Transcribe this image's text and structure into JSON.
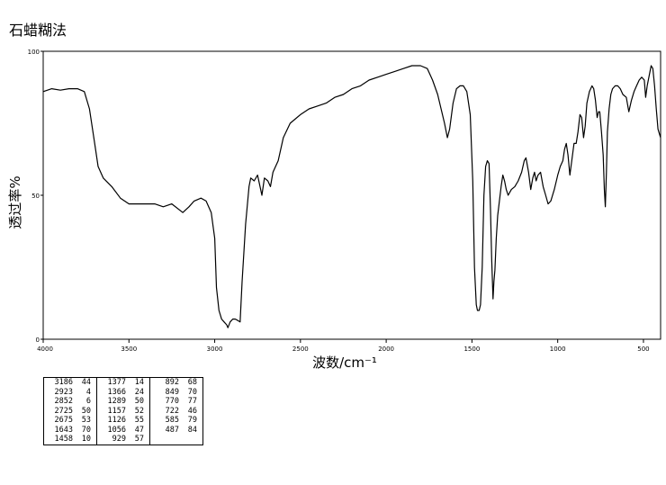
{
  "chart_data": {
    "type": "line",
    "title": "石蜡糊法",
    "xlabel": "波数/cm⁻¹",
    "ylabel": "透过率%",
    "xlim": [
      4000,
      400
    ],
    "ylim": [
      0,
      100
    ],
    "x_ticks": [
      "4000",
      "3500",
      "3000",
      "2500",
      "2000",
      "1500",
      "1000",
      "500"
    ],
    "x_tick_values": [
      4000,
      3500,
      3000,
      2500,
      2000,
      1500,
      1000,
      500
    ],
    "y_ticks": [
      "0",
      "50",
      "100"
    ],
    "y_tick_values": [
      0,
      50,
      100
    ],
    "line_color": "#000000",
    "series": [
      {
        "points": [
          [
            4000,
            86
          ],
          [
            3950,
            87
          ],
          [
            3900,
            86.5
          ],
          [
            3850,
            87
          ],
          [
            3800,
            87
          ],
          [
            3760,
            86
          ],
          [
            3730,
            80
          ],
          [
            3700,
            68
          ],
          [
            3680,
            60
          ],
          [
            3650,
            56
          ],
          [
            3600,
            53
          ],
          [
            3550,
            49
          ],
          [
            3500,
            47
          ],
          [
            3450,
            47
          ],
          [
            3400,
            47
          ],
          [
            3350,
            47
          ],
          [
            3300,
            46
          ],
          [
            3250,
            47
          ],
          [
            3186,
            44
          ],
          [
            3150,
            46
          ],
          [
            3120,
            48
          ],
          [
            3080,
            49
          ],
          [
            3050,
            48
          ],
          [
            3020,
            44
          ],
          [
            3000,
            35
          ],
          [
            2990,
            18
          ],
          [
            2975,
            10
          ],
          [
            2960,
            7
          ],
          [
            2945,
            6
          ],
          [
            2930,
            5
          ],
          [
            2923,
            4
          ],
          [
            2910,
            6
          ],
          [
            2895,
            7
          ],
          [
            2880,
            7
          ],
          [
            2865,
            6.5
          ],
          [
            2852,
            6
          ],
          [
            2840,
            20
          ],
          [
            2820,
            40
          ],
          [
            2800,
            53
          ],
          [
            2790,
            56
          ],
          [
            2770,
            55
          ],
          [
            2750,
            57
          ],
          [
            2725,
            50
          ],
          [
            2710,
            56
          ],
          [
            2690,
            55
          ],
          [
            2675,
            53
          ],
          [
            2660,
            58
          ],
          [
            2630,
            62
          ],
          [
            2600,
            70
          ],
          [
            2560,
            75
          ],
          [
            2500,
            78
          ],
          [
            2450,
            80
          ],
          [
            2400,
            81
          ],
          [
            2350,
            82
          ],
          [
            2300,
            84
          ],
          [
            2250,
            85
          ],
          [
            2200,
            87
          ],
          [
            2150,
            88
          ],
          [
            2100,
            90
          ],
          [
            2050,
            91
          ],
          [
            2000,
            92
          ],
          [
            1950,
            93
          ],
          [
            1900,
            94
          ],
          [
            1850,
            95
          ],
          [
            1800,
            95
          ],
          [
            1760,
            94
          ],
          [
            1730,
            90
          ],
          [
            1700,
            85
          ],
          [
            1680,
            80
          ],
          [
            1660,
            75
          ],
          [
            1643,
            70
          ],
          [
            1630,
            73
          ],
          [
            1610,
            82
          ],
          [
            1590,
            87
          ],
          [
            1570,
            88
          ],
          [
            1550,
            88
          ],
          [
            1530,
            86
          ],
          [
            1510,
            78
          ],
          [
            1495,
            55
          ],
          [
            1485,
            25
          ],
          [
            1475,
            12
          ],
          [
            1468,
            10
          ],
          [
            1458,
            10
          ],
          [
            1450,
            12
          ],
          [
            1440,
            25
          ],
          [
            1430,
            50
          ],
          [
            1420,
            60
          ],
          [
            1410,
            62
          ],
          [
            1400,
            61
          ],
          [
            1392,
            45
          ],
          [
            1385,
            28
          ],
          [
            1377,
            14
          ],
          [
            1372,
            20
          ],
          [
            1366,
            24
          ],
          [
            1358,
            35
          ],
          [
            1350,
            43
          ],
          [
            1340,
            48
          ],
          [
            1330,
            53
          ],
          [
            1320,
            57
          ],
          [
            1310,
            55
          ],
          [
            1300,
            52
          ],
          [
            1289,
            50
          ],
          [
            1270,
            52
          ],
          [
            1250,
            53
          ],
          [
            1230,
            55
          ],
          [
            1210,
            58
          ],
          [
            1195,
            62
          ],
          [
            1185,
            63
          ],
          [
            1170,
            58
          ],
          [
            1157,
            52
          ],
          [
            1145,
            56
          ],
          [
            1135,
            58
          ],
          [
            1126,
            55
          ],
          [
            1115,
            57
          ],
          [
            1100,
            58
          ],
          [
            1085,
            53
          ],
          [
            1070,
            50
          ],
          [
            1056,
            47
          ],
          [
            1040,
            48
          ],
          [
            1020,
            52
          ],
          [
            1000,
            57
          ],
          [
            985,
            60
          ],
          [
            970,
            62
          ],
          [
            960,
            66
          ],
          [
            950,
            68
          ],
          [
            940,
            64
          ],
          [
            929,
            57
          ],
          [
            918,
            62
          ],
          [
            905,
            68
          ],
          [
            892,
            68
          ],
          [
            882,
            72
          ],
          [
            870,
            78
          ],
          [
            860,
            77
          ],
          [
            849,
            70
          ],
          [
            840,
            74
          ],
          [
            830,
            82
          ],
          [
            815,
            86
          ],
          [
            800,
            88
          ],
          [
            790,
            87
          ],
          [
            780,
            83
          ],
          [
            770,
            77
          ],
          [
            762,
            79
          ],
          [
            755,
            79
          ],
          [
            745,
            72
          ],
          [
            735,
            64
          ],
          [
            728,
            52
          ],
          [
            722,
            46
          ],
          [
            716,
            58
          ],
          [
            710,
            72
          ],
          [
            700,
            80
          ],
          [
            690,
            85
          ],
          [
            680,
            87
          ],
          [
            665,
            88
          ],
          [
            650,
            88
          ],
          [
            635,
            87
          ],
          [
            620,
            85
          ],
          [
            600,
            84
          ],
          [
            585,
            79
          ],
          [
            570,
            83
          ],
          [
            555,
            86
          ],
          [
            540,
            88
          ],
          [
            525,
            90
          ],
          [
            510,
            91
          ],
          [
            495,
            90
          ],
          [
            487,
            84
          ],
          [
            478,
            88
          ],
          [
            465,
            92
          ],
          [
            455,
            95
          ],
          [
            445,
            94
          ],
          [
            435,
            88
          ],
          [
            425,
            80
          ],
          [
            415,
            73
          ],
          [
            405,
            71
          ],
          [
            400,
            70
          ]
        ]
      }
    ]
  },
  "peak_table": {
    "columns": [
      [
        [
          "3186",
          "44"
        ],
        [
          "2923",
          "4"
        ],
        [
          "2852",
          "6"
        ],
        [
          "2725",
          "50"
        ],
        [
          "2675",
          "53"
        ],
        [
          "1643",
          "70"
        ],
        [
          "1458",
          "10"
        ]
      ],
      [
        [
          "1377",
          "14"
        ],
        [
          "1366",
          "24"
        ],
        [
          "1289",
          "50"
        ],
        [
          "1157",
          "52"
        ],
        [
          "1126",
          "55"
        ],
        [
          "1056",
          "47"
        ],
        [
          "929",
          "57"
        ]
      ],
      [
        [
          "892",
          "68"
        ],
        [
          "849",
          "70"
        ],
        [
          "770",
          "77"
        ],
        [
          "722",
          "46"
        ],
        [
          "585",
          "79"
        ],
        [
          "487",
          "84"
        ]
      ]
    ]
  }
}
